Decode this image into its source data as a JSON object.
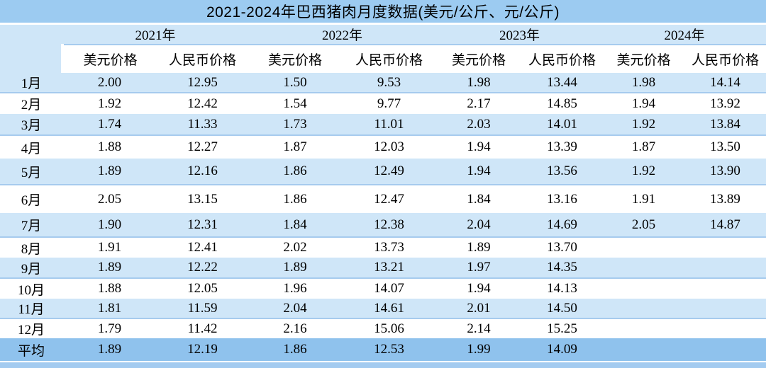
{
  "title": "2021-2024年巴西猪肉月度数据(美元/公斤、元/公斤)",
  "colors": {
    "title_bar": "#9CCBF1",
    "light_row": "#CFE6F8",
    "row_divider": "#A6CBEE",
    "average_row": "#8FC2ED",
    "bottom_strip": "#A3CBF0",
    "text": "#000000"
  },
  "chart_data": {
    "type": "table",
    "title": "2021-2024年巴西猪肉月度数据(美元/公斤、元/公斤)",
    "year_groups": [
      "2021年",
      "2022年",
      "2023年",
      "2024年"
    ],
    "price_columns": [
      "美元价格",
      "人民币价格"
    ],
    "row_label_average": "平均",
    "rows": [
      {
        "month": "1月",
        "values": [
          "2.00",
          "12.95",
          "1.50",
          "9.53",
          "1.98",
          "13.44",
          "1.98",
          "14.14"
        ]
      },
      {
        "month": "2月",
        "values": [
          "1.92",
          "12.42",
          "1.54",
          "9.77",
          "2.17",
          "14.85",
          "1.94",
          "13.92"
        ]
      },
      {
        "month": "3月",
        "values": [
          "1.74",
          "11.33",
          "1.73",
          "11.01",
          "2.03",
          "14.01",
          "1.92",
          "13.84"
        ]
      },
      {
        "month": "4月",
        "values": [
          "1.88",
          "12.27",
          "1.87",
          "12.03",
          "1.94",
          "13.39",
          "1.87",
          "13.50"
        ]
      },
      {
        "month": "5月",
        "values": [
          "1.89",
          "12.16",
          "1.86",
          "12.49",
          "1.94",
          "13.56",
          "1.92",
          "13.90"
        ]
      },
      {
        "month": "6月",
        "values": [
          "2.05",
          "13.15",
          "1.86",
          "12.47",
          "1.84",
          "13.16",
          "1.91",
          "13.89"
        ]
      },
      {
        "month": "7月",
        "values": [
          "1.90",
          "12.31",
          "1.84",
          "12.38",
          "2.04",
          "14.69",
          "2.05",
          "14.87"
        ]
      },
      {
        "month": "8月",
        "values": [
          "1.91",
          "12.41",
          "2.02",
          "13.73",
          "1.89",
          "13.70",
          "",
          ""
        ]
      },
      {
        "month": "9月",
        "values": [
          "1.89",
          "12.22",
          "1.89",
          "13.21",
          "1.97",
          "14.35",
          "",
          ""
        ]
      },
      {
        "month": "10月",
        "values": [
          "1.88",
          "12.05",
          "1.96",
          "14.07",
          "1.94",
          "14.13",
          "",
          ""
        ]
      },
      {
        "month": "11月",
        "values": [
          "1.81",
          "11.59",
          "2.04",
          "14.61",
          "2.01",
          "14.50",
          "",
          ""
        ]
      },
      {
        "month": "12月",
        "values": [
          "1.79",
          "11.42",
          "2.16",
          "15.06",
          "2.14",
          "15.25",
          "",
          ""
        ]
      },
      {
        "month": "平均",
        "values": [
          "1.89",
          "12.19",
          "1.86",
          "12.53",
          "1.99",
          "14.09",
          "",
          ""
        ]
      }
    ]
  }
}
